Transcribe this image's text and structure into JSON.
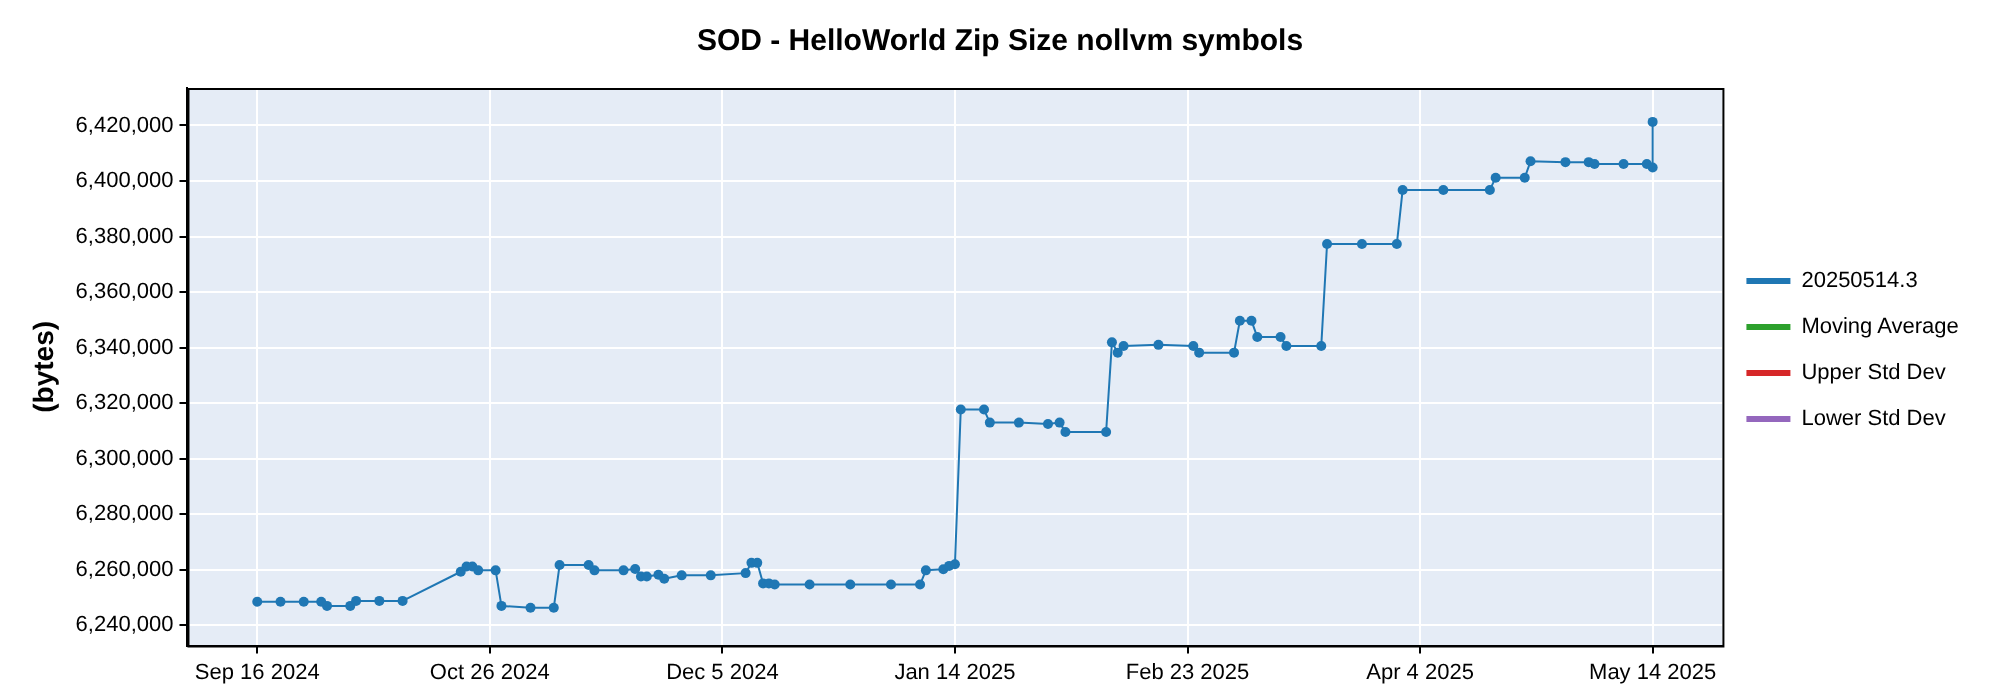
{
  "chart_data": {
    "type": "line",
    "title": "SOD - HelloWorld Zip Size nollvm symbols",
    "ylabel": "(bytes)",
    "x": [
      "2024-09-16",
      "2024-09-20",
      "2024-09-24",
      "2024-09-27",
      "2024-09-28",
      "2024-10-02",
      "2024-10-03",
      "2024-10-07",
      "2024-10-11",
      "2024-10-21",
      "2024-10-22",
      "2024-10-23",
      "2024-10-24",
      "2024-10-27",
      "2024-10-28",
      "2024-11-02",
      "2024-11-06",
      "2024-11-07",
      "2024-11-12",
      "2024-11-13",
      "2024-11-18",
      "2024-11-20",
      "2024-11-21",
      "2024-11-22",
      "2024-11-24",
      "2024-11-25",
      "2024-11-28",
      "2024-12-03",
      "2024-12-09",
      "2024-12-10",
      "2024-12-11",
      "2024-12-12",
      "2024-12-13",
      "2024-12-14",
      "2024-12-20",
      "2024-12-27",
      "2025-01-03",
      "2025-01-08",
      "2025-01-09",
      "2025-01-12",
      "2025-01-13",
      "2025-01-14",
      "2025-01-15",
      "2025-01-19",
      "2025-01-20",
      "2025-01-25",
      "2025-01-30",
      "2025-02-01",
      "2025-02-02",
      "2025-02-09",
      "2025-02-10",
      "2025-02-11",
      "2025-02-12",
      "2025-02-18",
      "2025-02-24",
      "2025-02-25",
      "2025-03-03",
      "2025-03-04",
      "2025-03-06",
      "2025-03-07",
      "2025-03-11",
      "2025-03-12",
      "2025-03-18",
      "2025-03-19",
      "2025-03-25",
      "2025-03-31",
      "2025-04-01",
      "2025-04-08",
      "2025-04-16",
      "2025-04-17",
      "2025-04-22",
      "2025-04-23",
      "2025-04-29",
      "2025-05-03",
      "2025-05-04",
      "2025-05-09",
      "2025-05-13",
      "2025-05-14",
      "2025-05-14"
    ],
    "series": [
      {
        "name": "20250514.3",
        "color": "#1f77b4",
        "values": [
          6248500,
          6248500,
          6248500,
          6248500,
          6247000,
          6247000,
          6248800,
          6248800,
          6248800,
          6259300,
          6261200,
          6261200,
          6259800,
          6259800,
          6247000,
          6246300,
          6246300,
          6261700,
          6261700,
          6259800,
          6259800,
          6260300,
          6257600,
          6257600,
          6258200,
          6256800,
          6258000,
          6258000,
          6258800,
          6262500,
          6262500,
          6255100,
          6255100,
          6254700,
          6254700,
          6254700,
          6254700,
          6254700,
          6259800,
          6260200,
          6261400,
          6262000,
          6317700,
          6317700,
          6313000,
          6313000,
          6312500,
          6313000,
          6309600,
          6309600,
          6341900,
          6338200,
          6340600,
          6341000,
          6340600,
          6338200,
          6338200,
          6349700,
          6349700,
          6343800,
          6343800,
          6340600,
          6340600,
          6377300,
          6377300,
          6377300,
          6396800,
          6396800,
          6396800,
          6401200,
          6401200,
          6407100,
          6406800,
          6406800,
          6406100,
          6406100,
          6406100,
          6404900,
          6421300
        ]
      },
      {
        "name": "Moving Average",
        "color": "#2ca02c",
        "values": [
          null,
          null,
          null,
          null,
          null,
          null,
          null,
          null,
          null,
          null,
          null,
          null,
          null,
          null,
          null,
          null,
          null,
          null,
          null,
          null,
          null,
          null,
          null,
          null,
          null,
          null,
          null,
          null,
          null,
          null,
          null,
          null,
          null,
          null,
          null,
          null,
          null,
          null,
          null,
          null,
          null,
          null,
          null,
          null,
          null,
          null,
          null,
          null,
          null,
          null,
          null,
          null,
          null,
          null,
          null,
          null,
          null,
          null,
          null,
          null,
          null,
          null,
          null,
          null,
          null,
          null,
          null,
          null,
          null,
          null,
          null,
          null,
          null,
          null,
          null,
          null,
          null,
          null,
          null
        ]
      },
      {
        "name": "Upper Std Dev",
        "color": "#d62728",
        "values": [
          null,
          null,
          null,
          null,
          null,
          null,
          null,
          null,
          null,
          null,
          null,
          null,
          null,
          null,
          null,
          null,
          null,
          null,
          null,
          null,
          null,
          null,
          null,
          null,
          null,
          null,
          null,
          null,
          null,
          null,
          null,
          null,
          null,
          null,
          null,
          null,
          null,
          null,
          null,
          null,
          null,
          null,
          null,
          null,
          null,
          null,
          null,
          null,
          null,
          null,
          null,
          null,
          null,
          null,
          null,
          null,
          null,
          null,
          null,
          null,
          null,
          null,
          null,
          null,
          null,
          null,
          null,
          null,
          null,
          null,
          null,
          null,
          null,
          null,
          null,
          null,
          null,
          null,
          null
        ]
      },
      {
        "name": "Lower Std Dev",
        "color": "#9467bd",
        "values": [
          null,
          null,
          null,
          null,
          null,
          null,
          null,
          null,
          null,
          null,
          null,
          null,
          null,
          null,
          null,
          null,
          null,
          null,
          null,
          null,
          null,
          null,
          null,
          null,
          null,
          null,
          null,
          null,
          null,
          null,
          null,
          null,
          null,
          null,
          null,
          null,
          null,
          null,
          null,
          null,
          null,
          null,
          null,
          null,
          null,
          null,
          null,
          null,
          null,
          null,
          null,
          null,
          null,
          null,
          null,
          null,
          null,
          null,
          null,
          null,
          null,
          null,
          null,
          null,
          null,
          null,
          null,
          null,
          null,
          null,
          null,
          null,
          null,
          null,
          null,
          null,
          null,
          null,
          null
        ]
      }
    ],
    "xlim": [
      "2024-09-04",
      "2025-05-26"
    ],
    "xticks": [
      {
        "value": "2024-09-16",
        "label": "Sep 16 2024"
      },
      {
        "value": "2024-10-26",
        "label": "Oct 26 2024"
      },
      {
        "value": "2024-12-05",
        "label": "Dec 5 2024"
      },
      {
        "value": "2025-01-14",
        "label": "Jan 14 2025"
      },
      {
        "value": "2025-02-23",
        "label": "Feb 23 2025"
      },
      {
        "value": "2025-04-04",
        "label": "Apr 4 2025"
      },
      {
        "value": "2025-05-14",
        "label": "May 14 2025"
      }
    ],
    "ylim": [
      6232700,
      6433500
    ],
    "yticks": [
      {
        "value": 6240000,
        "label": "6,240,000"
      },
      {
        "value": 6260000,
        "label": "6,260,000"
      },
      {
        "value": 6280000,
        "label": "6,280,000"
      },
      {
        "value": 6300000,
        "label": "6,300,000"
      },
      {
        "value": 6320000,
        "label": "6,320,000"
      },
      {
        "value": 6340000,
        "label": "6,340,000"
      },
      {
        "value": 6360000,
        "label": "6,360,000"
      },
      {
        "value": 6380000,
        "label": "6,380,000"
      },
      {
        "value": 6400000,
        "label": "6,400,000"
      },
      {
        "value": 6420000,
        "label": "6,420,000"
      }
    ],
    "grid": true,
    "legend": "right",
    "marker": "circle",
    "line_style": "solid"
  }
}
